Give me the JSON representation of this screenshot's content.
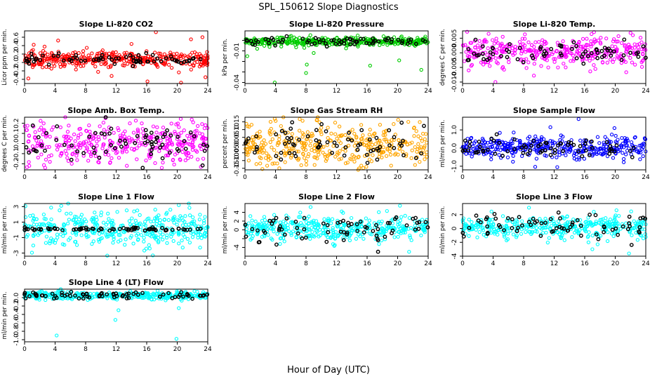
{
  "figure": {
    "title": "SPL_150612  Slope Diagnostics",
    "xlabel": "Hour of Day (UTC)",
    "colors": {
      "red": "#ff0000",
      "green": "#00cc00",
      "magenta": "#ff00ff",
      "orange": "#ffa500",
      "blue": "#0000ff",
      "cyan": "#00ffff",
      "black": "#000000"
    }
  },
  "chart_data": [
    {
      "type": "scatter",
      "title": "Slope Li-820 CO2",
      "ylabel": "Licor ppm per min.",
      "xlim": [
        0,
        24
      ],
      "xticks": [
        0,
        4,
        8,
        12,
        16,
        20,
        24
      ],
      "ylim": [
        -0.5,
        0.75
      ],
      "yticks": [
        -0.4,
        -0.2,
        0.0,
        0.2,
        0.4,
        0.6
      ],
      "ytick_labels": [
        "-0.4",
        "-0.2",
        "0.0",
        "0.2",
        "0.4",
        "0.6"
      ],
      "color": "red",
      "center": 0.08,
      "spread": 0.09,
      "black_spread": 0.06,
      "outliers": [
        [
          0.5,
          -0.38
        ],
        [
          1.2,
          0.42
        ],
        [
          16.1,
          -0.45
        ],
        [
          17.2,
          0.72
        ],
        [
          20.5,
          -0.48
        ],
        [
          21.8,
          0.55
        ],
        [
          23.3,
          0.6
        ],
        [
          23.7,
          -0.35
        ],
        [
          14.0,
          0.44
        ],
        [
          11.4,
          -0.32
        ],
        [
          4.4,
          0.52
        ]
      ]
    },
    {
      "type": "scatter",
      "title": "Slope Li-820 Pressure",
      "ylabel": "kPa per min.",
      "xlim": [
        0,
        24
      ],
      "xticks": [
        0,
        4,
        8,
        12,
        16,
        20,
        24
      ],
      "ylim": [
        -0.041,
        0.009
      ],
      "yticks": [
        -0.04,
        -0.03,
        -0.02,
        -0.01,
        0.0
      ],
      "ytick_labels": [
        "-0.04",
        "",
        "",
        "-0.01",
        ""
      ],
      "color": "green",
      "center": -0.001,
      "spread": 0.0022,
      "black_spread": 0.002,
      "outliers": [
        [
          0.3,
          -0.015
        ],
        [
          1.6,
          -0.008
        ],
        [
          3.9,
          -0.04
        ],
        [
          8.0,
          -0.031
        ],
        [
          9.0,
          -0.012
        ],
        [
          16.4,
          -0.024
        ],
        [
          20.2,
          -0.019
        ],
        [
          23.1,
          -0.028
        ],
        [
          8.1,
          -0.023
        ]
      ]
    },
    {
      "type": "scatter",
      "title": "Slope Li-820 Temp.",
      "ylabel": "degrees C per min.",
      "xlim": [
        0,
        24
      ],
      "xticks": [
        0,
        4,
        8,
        12,
        16,
        20,
        24
      ],
      "ylim": [
        -0.0105,
        0.0075
      ],
      "yticks": [
        -0.01,
        -0.005,
        0.0,
        0.005
      ],
      "ytick_labels": [
        "-0.010",
        "-0.005",
        "0.000",
        "0.005"
      ],
      "color": "magenta",
      "center": 0.0005,
      "spread": 0.0025,
      "black_spread": 0.0018,
      "outliers": [
        [
          0.6,
          0.0072
        ],
        [
          0.8,
          -0.006
        ],
        [
          4.3,
          -0.01
        ],
        [
          10.3,
          -0.0045
        ],
        [
          12.5,
          -0.005
        ],
        [
          17.4,
          -0.0055
        ],
        [
          22.0,
          0.0068
        ],
        [
          23.5,
          -0.0048
        ]
      ]
    },
    {
      "type": "scatter",
      "title": "Slope Amb. Box Temp.",
      "ylabel": "degrees C per min.",
      "xlim": [
        0,
        24
      ],
      "xticks": [
        0,
        4,
        8,
        12,
        16,
        20,
        24
      ],
      "ylim": [
        -0.26,
        0.26
      ],
      "yticks": [
        -0.2,
        -0.1,
        0.0,
        0.1,
        0.2
      ],
      "ytick_labels": [
        "-0.2",
        "-0.1",
        "0.0",
        "0.1",
        "0.2"
      ],
      "color": "magenta",
      "center": 0.0,
      "spread": 0.1,
      "black_spread": 0.08,
      "outliers": [
        [
          2.7,
          -0.24
        ],
        [
          10.6,
          0.25
        ],
        [
          13.4,
          -0.22
        ],
        [
          23.1,
          -0.23
        ]
      ]
    },
    {
      "type": "scatter",
      "title": "Slope Gas Stream RH",
      "ylabel": "percent per min.",
      "xlim": [
        0,
        24
      ],
      "xticks": [
        0,
        4,
        8,
        12,
        16,
        20,
        24
      ],
      "ylim": [
        -0.16,
        0.18
      ],
      "yticks": [
        -0.15,
        -0.1,
        -0.05,
        0.0,
        0.05,
        0.1,
        0.15
      ],
      "ytick_labels": [
        "-0.15",
        "-0.10",
        "-0.05",
        "0.00",
        "0.05",
        "0.10",
        "0.15"
      ],
      "color": "orange",
      "center": 0.0,
      "spread": 0.07,
      "black_spread": 0.055,
      "outliers": [
        [
          3.9,
          0.17
        ],
        [
          4.5,
          -0.15
        ],
        [
          9.4,
          0.16
        ],
        [
          15.9,
          -0.14
        ],
        [
          21.4,
          0.15
        ]
      ]
    },
    {
      "type": "scatter",
      "title": "Slope Sample Flow",
      "ylabel": "ml/min per min.",
      "xlim": [
        0,
        24
      ],
      "xticks": [
        0,
        4,
        8,
        12,
        16,
        20,
        24
      ],
      "ylim": [
        -1.2,
        1.7
      ],
      "yticks": [
        -1.0,
        0.0,
        1.0
      ],
      "ytick_labels": [
        "-1.0",
        "0.0",
        "1.0"
      ],
      "color": "blue",
      "center": 0.05,
      "spread": 0.3,
      "black_spread": 0.25,
      "outliers": [
        [
          12.4,
          -1.05
        ],
        [
          15.2,
          1.6
        ],
        [
          11.5,
          1.15
        ],
        [
          6.6,
          -0.75
        ],
        [
          19.9,
          1.1
        ]
      ]
    },
    {
      "type": "scatter",
      "title": "Slope Line 1 Flow",
      "ylabel": "ml/min per min.",
      "xlim": [
        0,
        24
      ],
      "xticks": [
        0,
        4,
        8,
        12,
        16,
        20,
        24
      ],
      "ylim": [
        -3.4,
        3.4
      ],
      "yticks": [
        -3,
        -1,
        1,
        3
      ],
      "ytick_labels": [
        "-3",
        "-1",
        "1",
        "3"
      ],
      "color": "cyan",
      "center": 0.1,
      "spread": 1.1,
      "black_spread": 0.08,
      "outliers": [
        [
          4.8,
          3.1
        ],
        [
          16.4,
          -2.4
        ],
        [
          16.8,
          -3.3
        ],
        [
          20.2,
          3.2
        ],
        [
          19.1,
          2.6
        ]
      ]
    },
    {
      "type": "scatter",
      "title": "Slope Line 2 Flow",
      "ylabel": "ml/min per min.",
      "xlim": [
        0,
        24
      ],
      "xticks": [
        0,
        4,
        8,
        12,
        16,
        20,
        24
      ],
      "ylim": [
        -6,
        6
      ],
      "yticks": [
        -4,
        -2,
        0,
        2,
        4
      ],
      "ytick_labels": [
        "-4",
        "",
        "0",
        "2",
        "4"
      ],
      "color": "cyan",
      "center": 0.3,
      "spread": 1.3,
      "black_spread": 1.6,
      "outliers": [
        [
          8.6,
          5.2
        ],
        [
          4.6,
          -3.2
        ],
        [
          21.5,
          -5.0
        ],
        [
          18.6,
          4.3
        ],
        [
          20.3,
          5.5
        ]
      ]
    },
    {
      "type": "scatter",
      "title": "Slope Line 3 Flow",
      "ylabel": "ml/min per min.",
      "xlim": [
        0,
        24
      ],
      "xticks": [
        0,
        4,
        8,
        12,
        16,
        20,
        24
      ],
      "ylim": [
        -4,
        3.6
      ],
      "yticks": [
        -4,
        -2,
        0,
        2
      ],
      "ytick_labels": [
        "-4",
        "-2",
        "0",
        "2"
      ],
      "color": "cyan",
      "center": 0.2,
      "spread": 0.8,
      "black_spread": 1.0,
      "outliers": [
        [
          8.7,
          3.0
        ],
        [
          17.0,
          -3.0
        ],
        [
          17.2,
          2.4
        ],
        [
          21.8,
          -3.6
        ],
        [
          16.5,
          -2.0
        ]
      ]
    },
    {
      "type": "scatter",
      "title": "Slope Line 4 (LT) Flow",
      "ylabel": "ml/min per min.",
      "xlim": [
        0,
        24
      ],
      "xticks": [
        0,
        4,
        8,
        12,
        16,
        20,
        24
      ],
      "ylim": [
        -1.05,
        0.2
      ],
      "yticks": [
        -1.0,
        -0.8,
        -0.6,
        -0.4,
        -0.2,
        0.0
      ],
      "ytick_labels": [
        "-1.0",
        "-0.8",
        "-0.6",
        "-0.4",
        "-0.2",
        "0.0"
      ],
      "color": "cyan",
      "center": 0.05,
      "spread": 0.045,
      "black_spread": 0.04,
      "outliers": [
        [
          4.2,
          -0.9
        ],
        [
          11.9,
          -0.53
        ],
        [
          19.9,
          -0.98
        ],
        [
          20.2,
          -0.25
        ],
        [
          12.3,
          -0.3
        ]
      ]
    }
  ]
}
